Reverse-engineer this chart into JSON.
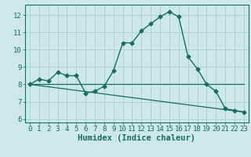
{
  "xlabel": "Humidex (Indice chaleur)",
  "background_color": "#cce8e8",
  "line_color": "#1a6b60",
  "grid_color": "#aacfcf",
  "spine_color": "#1a6b60",
  "xlim": [
    -0.5,
    23.5
  ],
  "ylim": [
    5.8,
    12.6
  ],
  "yticks": [
    6,
    7,
    8,
    9,
    10,
    11,
    12
  ],
  "xticks": [
    0,
    1,
    2,
    3,
    4,
    5,
    6,
    7,
    8,
    9,
    10,
    11,
    12,
    13,
    14,
    15,
    16,
    17,
    18,
    19,
    20,
    21,
    22,
    23
  ],
  "series_main": {
    "x": [
      0,
      1,
      2,
      3,
      4,
      5,
      6,
      7,
      8,
      9,
      10,
      11,
      12,
      13,
      14,
      15,
      16,
      17,
      18,
      19,
      20,
      21,
      22,
      23
    ],
    "y": [
      8.0,
      8.3,
      8.2,
      8.7,
      8.5,
      8.5,
      7.5,
      7.6,
      7.9,
      8.8,
      10.4,
      10.4,
      11.1,
      11.5,
      11.9,
      12.2,
      11.9,
      9.6,
      8.9,
      8.0,
      7.6,
      6.6,
      6.5,
      6.4
    ]
  },
  "series_flat": {
    "x": [
      0,
      23
    ],
    "y": [
      8.0,
      8.0
    ]
  },
  "series_diag": {
    "x": [
      0,
      23
    ],
    "y": [
      8.0,
      6.4
    ]
  },
  "tick_fontsize": 6.5,
  "xlabel_fontsize": 7.5,
  "marker": "D",
  "markersize": 2.5,
  "linewidth_main": 1.0,
  "linewidth_aux": 0.9
}
